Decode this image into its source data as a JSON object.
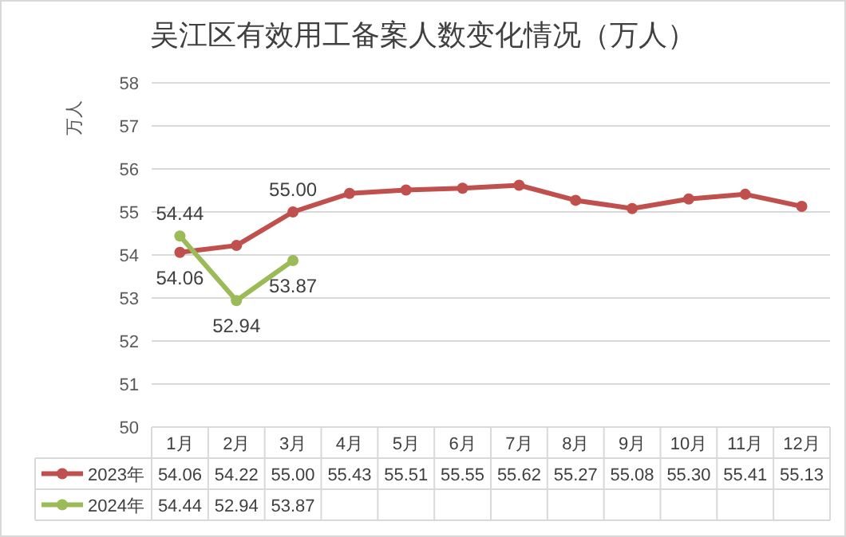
{
  "chart_data": {
    "type": "line",
    "title": "吴江区有效用工备案人数变化情况（万人）",
    "ylabel": "万人",
    "categories": [
      "1月",
      "2月",
      "3月",
      "4月",
      "5月",
      "6月",
      "7月",
      "8月",
      "9月",
      "10月",
      "11月",
      "12月"
    ],
    "series": [
      {
        "name": "2023年",
        "color": "#c0504d",
        "values": [
          54.06,
          54.22,
          55.0,
          55.43,
          55.51,
          55.55,
          55.62,
          55.27,
          55.08,
          55.3,
          55.41,
          55.13
        ],
        "value_labels": [
          "54.06",
          "54.22",
          "55.00",
          "55.43",
          "55.51",
          "55.55",
          "55.62",
          "55.27",
          "55.08",
          "55.30",
          "55.41",
          "55.13"
        ]
      },
      {
        "name": "2024年",
        "color": "#9bbb59",
        "values": [
          54.44,
          52.94,
          53.87,
          null,
          null,
          null,
          null,
          null,
          null,
          null,
          null,
          null
        ],
        "value_labels": [
          "54.44",
          "52.94",
          "53.87",
          null,
          null,
          null,
          null,
          null,
          null,
          null,
          null,
          null
        ]
      }
    ],
    "annotations": [
      {
        "text": "54.06",
        "x": "1月",
        "y": 54.06
      },
      {
        "text": "55.00",
        "x": "3月",
        "y": 55.0
      },
      {
        "text": "54.44",
        "x": "1月",
        "y": 54.44
      },
      {
        "text": "52.94",
        "x": "2月",
        "y": 52.94
      },
      {
        "text": "53.87",
        "x": "3月",
        "y": 53.87
      }
    ],
    "ylim": [
      50,
      58
    ],
    "yticks": [
      50,
      51,
      52,
      53,
      54,
      55,
      56,
      57,
      58
    ],
    "grid": "y",
    "marker": "circle",
    "line_style": "solid",
    "legend": "bottom"
  }
}
